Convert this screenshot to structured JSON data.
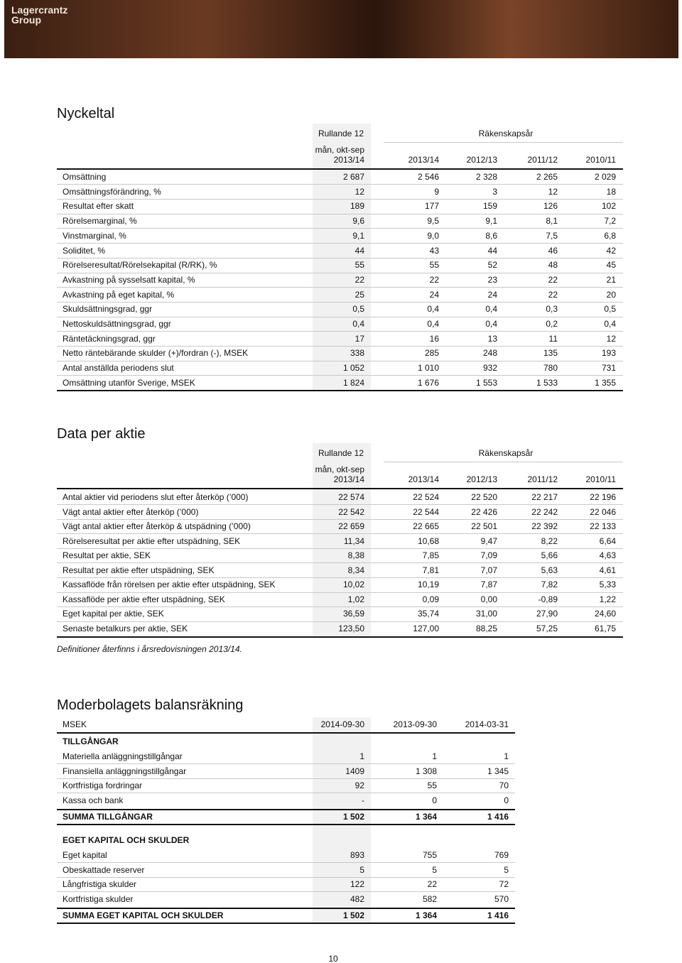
{
  "header": {
    "logo": [
      "Lagercrantz",
      "Group"
    ]
  },
  "key_figures": {
    "title": "Nyckeltal",
    "rolling": "Rullande 12",
    "fiscal": "Räkenskapsår",
    "rolling_period": "mån, okt-sep",
    "columns": [
      "2013/14",
      "2013/14",
      "2012/13",
      "2011/12",
      "2010/11"
    ],
    "rows": [
      [
        "Omsättning",
        "2 687",
        "2 546",
        "2 328",
        "2 265",
        "2 029"
      ],
      [
        "Omsättningsförändring, %",
        "12",
        "9",
        "3",
        "12",
        "18"
      ],
      [
        "Resultat efter skatt",
        "189",
        "177",
        "159",
        "126",
        "102"
      ],
      [
        "Rörelsemarginal, %",
        "9,6",
        "9,5",
        "9,1",
        "8,1",
        "7,2"
      ],
      [
        "Vinstmarginal, %",
        "9,1",
        "9,0",
        "8,6",
        "7,5",
        "6,8"
      ],
      [
        "Soliditet, %",
        "44",
        "43",
        "44",
        "46",
        "42"
      ],
      [
        "Rörelseresultat/Rörelsekapital (R/RK), %",
        "55",
        "55",
        "52",
        "48",
        "45"
      ],
      [
        "Avkastning på sysselsatt kapital, %",
        "22",
        "22",
        "23",
        "22",
        "21"
      ],
      [
        "Avkastning på eget kapital, %",
        "25",
        "24",
        "24",
        "22",
        "20"
      ],
      [
        "Skuldsättningsgrad, ggr",
        "0,5",
        "0,4",
        "0,4",
        "0,3",
        "0,5"
      ],
      [
        "Nettoskuldsättningsgrad, ggr",
        "0,4",
        "0,4",
        "0,4",
        "0,2",
        "0,4"
      ],
      [
        "Räntetäckningsgrad, ggr",
        "17",
        "16",
        "13",
        "11",
        "12"
      ],
      [
        "Netto räntebärande skulder (+)/fordran (-), MSEK",
        "338",
        "285",
        "248",
        "135",
        "193"
      ],
      [
        "Antal anställda periodens slut",
        "1 052",
        "1 010",
        "932",
        "780",
        "731"
      ],
      [
        "Omsättning utanför Sverige, MSEK",
        "1 824",
        "1 676",
        "1 553",
        "1 533",
        "1 355"
      ]
    ]
  },
  "share_data": {
    "title": "Data per aktie",
    "rolling": "Rullande 12",
    "fiscal": "Räkenskapsår",
    "rolling_period": "mån, okt-sep",
    "columns": [
      "2013/14",
      "2013/14",
      "2012/13",
      "2011/12",
      "2010/11"
    ],
    "rows": [
      [
        "Antal aktier vid periodens slut efter återköp (’000)",
        "22 574",
        "22 524",
        "22 520",
        "22 217",
        "22 196"
      ],
      [
        "Vägt antal aktier efter återköp (’000)",
        "22 542",
        "22 544",
        "22 426",
        "22 242",
        "22 046"
      ],
      [
        "Vägt antal aktier efter återköp & utspädning (’000)",
        "22 659",
        "22 665",
        "22 501",
        "22 392",
        "22 133"
      ],
      [
        "Rörelseresultat per aktie efter utspädning, SEK",
        "11,34",
        "10,68",
        "9,47",
        "8,22",
        "6,64"
      ],
      [
        "Resultat per aktie, SEK",
        "8,38",
        "7,85",
        "7,09",
        "5,66",
        "4,63"
      ],
      [
        "Resultat per aktie efter utspädning, SEK",
        "8,34",
        "7,81",
        "7,07",
        "5,63",
        "4,61"
      ],
      [
        "Kassaflöde från rörelsen per aktie efter utspädning, SEK",
        "10,02",
        "10,19",
        "7,87",
        "7,82",
        "5,33"
      ],
      [
        "Kassaflöde per aktie efter utspädning, SEK",
        "1,02",
        "0,09",
        "0,00",
        "-0,89",
        "1,22"
      ],
      [
        "Eget kapital per aktie, SEK",
        "36,59",
        "35,74",
        "31,00",
        "27,90",
        "24,60"
      ],
      [
        "Senaste betalkurs per aktie, SEK",
        "123,50",
        "127,00",
        "88,25",
        "57,25",
        "61,75"
      ]
    ],
    "note": "Definitioner återfinns i årsredovisningen 2013/14."
  },
  "balance": {
    "title": "Moderbolagets balansräkning",
    "columns": [
      "MSEK",
      "2014-09-30",
      "2013-09-30",
      "2014-03-31"
    ],
    "groups": [
      {
        "heading": "TILLGÅNGAR",
        "rows": [
          [
            "Materiella anläggningstillgångar",
            "1",
            "1",
            "1"
          ],
          [
            "Finansiella anläggningstillgångar",
            "1409",
            "1 308",
            "1 345"
          ],
          [
            "Kortfristiga fordringar",
            "92",
            "55",
            "70"
          ],
          [
            "Kassa och bank",
            "-",
            "0",
            "0"
          ]
        ],
        "total": [
          "SUMMA TILLGÅNGAR",
          "1 502",
          "1 364",
          "1 416"
        ]
      },
      {
        "heading": "EGET KAPITAL OCH SKULDER",
        "rows": [
          [
            "Eget kapital",
            "893",
            "755",
            "769"
          ],
          [
            "Obeskattade reserver",
            "5",
            "5",
            "5"
          ],
          [
            "Långfristiga skulder",
            "122",
            "22",
            "72"
          ],
          [
            "Kortfristiga skulder",
            "482",
            "582",
            "570"
          ]
        ],
        "total": [
          "SUMMA EGET KAPITAL OCH SKULDER",
          "1 502",
          "1 364",
          "1 416"
        ]
      }
    ]
  },
  "page_number": "10"
}
